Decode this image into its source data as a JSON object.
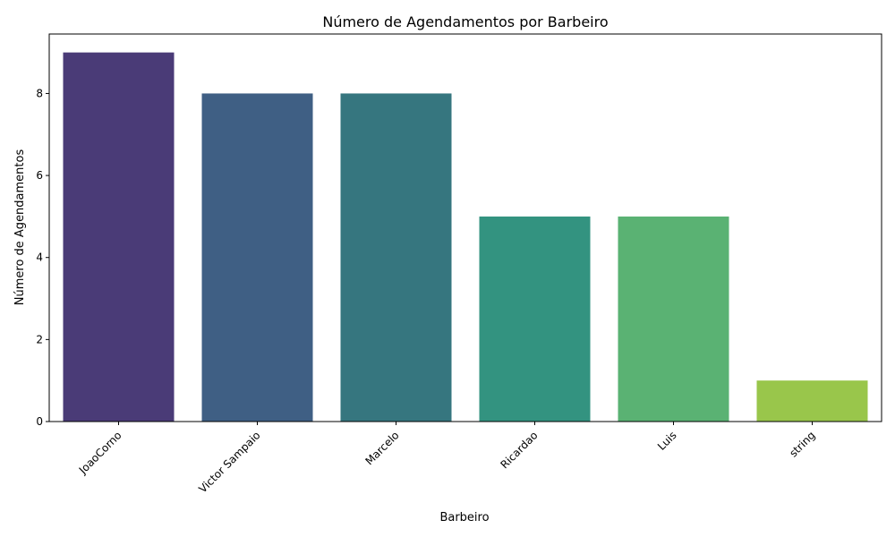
{
  "chart_data": {
    "type": "bar",
    "title": "Número de Agendamentos por Barbeiro",
    "xlabel": "Barbeiro",
    "ylabel": "Número de Agendamentos",
    "categories": [
      "JoaoCorno",
      "Victor Sampaio",
      "Marcelo",
      "Ricardao",
      "Luis",
      "string"
    ],
    "values": [
      9,
      8,
      8,
      5,
      5,
      1
    ],
    "colors": [
      "#4a3b77",
      "#3f5f84",
      "#36767f",
      "#339380",
      "#5ab273",
      "#99c64b"
    ],
    "ylim": [
      0,
      9.45
    ],
    "yticks": [
      0,
      2,
      4,
      6,
      8
    ],
    "ytick_labels": [
      "0",
      "2",
      "4",
      "6",
      "8"
    ],
    "grid": false,
    "legend": "none",
    "xtick_rotation": 45
  }
}
